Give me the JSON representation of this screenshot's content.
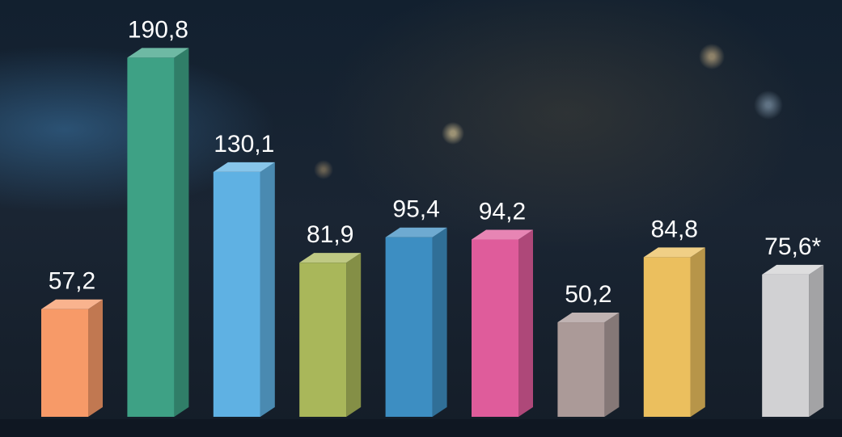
{
  "chart_data": {
    "type": "bar3d",
    "categories": [
      null,
      null,
      null,
      null,
      null,
      null,
      null,
      null,
      null
    ],
    "values": [
      57.2,
      190.8,
      130.1,
      81.9,
      95.4,
      94.2,
      50.2,
      84.8,
      75.6
    ],
    "value_labels": [
      "57,2",
      "190,8",
      "130,1",
      "81,9",
      "95,4",
      "94,2",
      "50,2",
      "84,8",
      "75,6*"
    ],
    "colors": [
      "#f79a68",
      "#3ea185",
      "#5fb1e3",
      "#a9b75a",
      "#3d8ec2",
      "#df5c9b",
      "#ab9a98",
      "#ebbf5e",
      "#d1d1d3"
    ]
  }
}
